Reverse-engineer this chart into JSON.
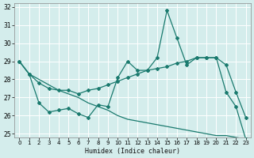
{
  "title": "",
  "xlabel": "Humidex (Indice chaleur)",
  "bg_color": "#d4edec",
  "grid_color": "#b8d8d8",
  "line_color": "#1a7a6e",
  "xlim": [
    -0.5,
    23.5
  ],
  "ylim": [
    24.8,
    32.2
  ],
  "yticks": [
    25,
    26,
    27,
    28,
    29,
    30,
    31,
    32
  ],
  "xticks": [
    0,
    1,
    2,
    3,
    4,
    5,
    6,
    7,
    8,
    9,
    10,
    11,
    12,
    13,
    14,
    15,
    16,
    17,
    18,
    19,
    20,
    21,
    22,
    23
  ],
  "series1_x": [
    0,
    1,
    2,
    3,
    4,
    5,
    6,
    7,
    8,
    9,
    10,
    11,
    12,
    13,
    14,
    15,
    16,
    17,
    18,
    19,
    20,
    21,
    22,
    23
  ],
  "series1_y": [
    29.0,
    28.3,
    26.7,
    26.2,
    26.3,
    26.4,
    26.1,
    25.9,
    26.6,
    26.5,
    28.1,
    29.0,
    28.5,
    28.5,
    29.2,
    31.8,
    30.3,
    28.8,
    29.2,
    29.2,
    29.2,
    27.3,
    26.5,
    24.7
  ],
  "series2_x": [
    0,
    1,
    2,
    3,
    4,
    5,
    6,
    7,
    8,
    9,
    10,
    11,
    12,
    13,
    14,
    15,
    16,
    17,
    18,
    19,
    20,
    21,
    22,
    23
  ],
  "series2_y": [
    29.0,
    28.3,
    27.8,
    27.5,
    27.4,
    27.4,
    27.2,
    27.4,
    27.5,
    27.7,
    27.9,
    28.1,
    28.3,
    28.5,
    28.6,
    28.7,
    28.9,
    29.0,
    29.2,
    29.2,
    29.2,
    28.8,
    27.3,
    25.9
  ],
  "series3_x": [
    0,
    1,
    2,
    3,
    4,
    5,
    6,
    7,
    8,
    9,
    10,
    11,
    12,
    13,
    14,
    15,
    16,
    17,
    18,
    19,
    20,
    21,
    22,
    23
  ],
  "series3_y": [
    29.0,
    28.3,
    28.0,
    27.7,
    27.4,
    27.2,
    27.0,
    26.7,
    26.5,
    26.3,
    26.0,
    25.8,
    25.7,
    25.6,
    25.5,
    25.4,
    25.3,
    25.2,
    25.1,
    25.0,
    24.9,
    24.9,
    24.8,
    24.7
  ]
}
